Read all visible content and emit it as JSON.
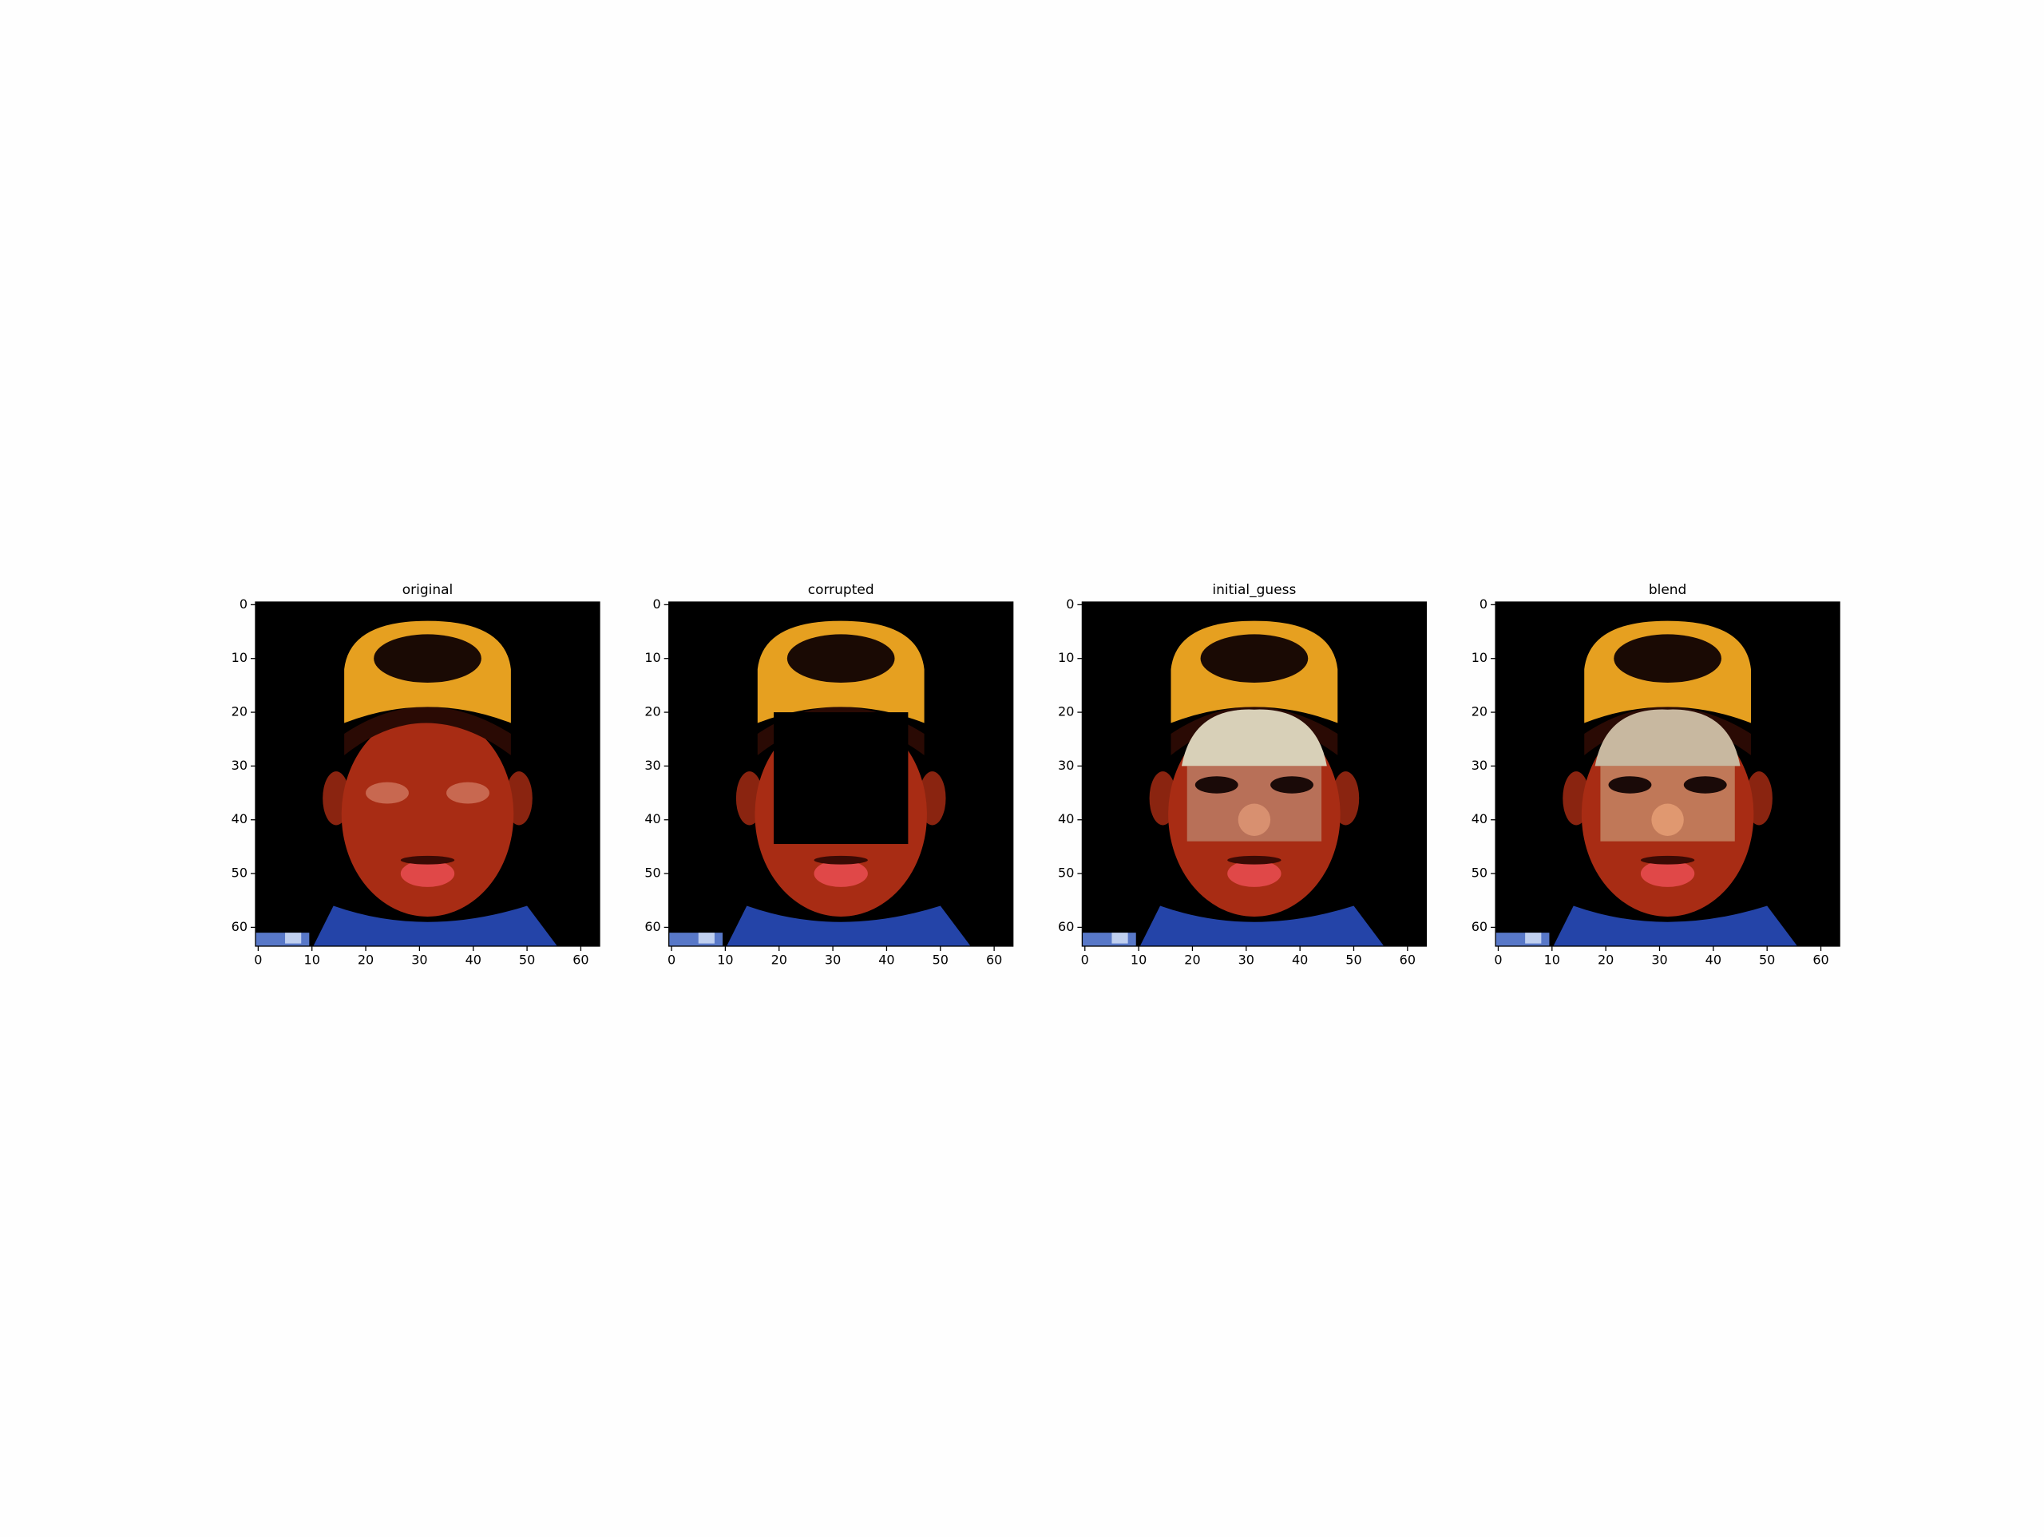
{
  "chart_data": [
    {
      "type": "image",
      "title": "original",
      "xlim": [
        -0.5,
        63.5
      ],
      "ylim": [
        63.5,
        -0.5
      ],
      "xticks": [
        0,
        10,
        20,
        30,
        40,
        50,
        60
      ],
      "yticks": [
        0,
        10,
        20,
        30,
        40,
        50,
        60
      ]
    },
    {
      "type": "image",
      "title": "corrupted",
      "xlim": [
        -0.5,
        63.5
      ],
      "ylim": [
        63.5,
        -0.5
      ],
      "xticks": [
        0,
        10,
        20,
        30,
        40,
        50,
        60
      ],
      "yticks": [
        0,
        10,
        20,
        30,
        40,
        50,
        60
      ]
    },
    {
      "type": "image",
      "title": "initial_guess",
      "xlim": [
        -0.5,
        63.5
      ],
      "ylim": [
        63.5,
        -0.5
      ],
      "xticks": [
        0,
        10,
        20,
        30,
        40,
        50,
        60
      ],
      "yticks": [
        0,
        10,
        20,
        30,
        40,
        50,
        60
      ]
    },
    {
      "type": "image",
      "title": "blend",
      "xlim": [
        -0.5,
        63.5
      ],
      "ylim": [
        63.5,
        -0.5
      ],
      "xticks": [
        0,
        10,
        20,
        30,
        40,
        50,
        60
      ],
      "yticks": [
        0,
        10,
        20,
        30,
        40,
        50,
        60
      ]
    }
  ]
}
